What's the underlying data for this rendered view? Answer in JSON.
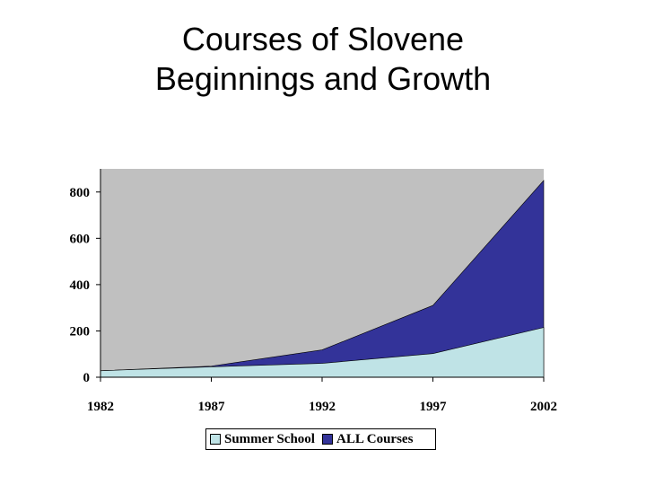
{
  "title": {
    "line1": "Courses of Slovene",
    "line2": "Beginnings and Growth"
  },
  "chart_data": {
    "type": "area",
    "x": [
      "1982",
      "1987",
      "1992",
      "1997",
      "2002"
    ],
    "series": [
      {
        "name": "Summer School",
        "values": [
          28,
          45,
          60,
          102,
          215
        ],
        "color": "#bfe3e6"
      },
      {
        "name": "ALL Courses",
        "values": [
          28,
          48,
          118,
          310,
          850
        ],
        "color": "#333399"
      }
    ],
    "ylim": [
      0,
      900
    ],
    "yticks": [
      0,
      200,
      400,
      600,
      800
    ],
    "plot_background": "#c0c0c0",
    "grid": false,
    "legend_position": "bottom",
    "legend": [
      "Summer School",
      "ALL Courses"
    ]
  }
}
